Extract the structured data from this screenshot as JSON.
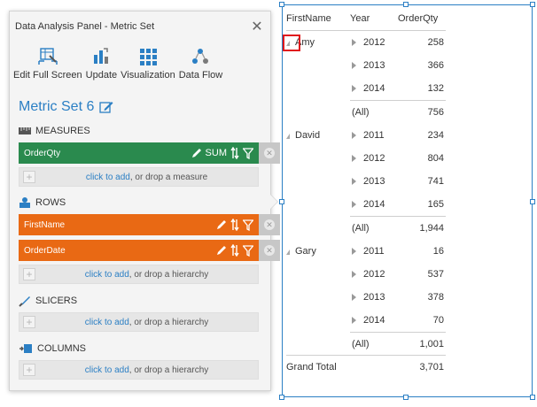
{
  "panel": {
    "title": "Data Analysis Panel - Metric Set",
    "close_glyph": "✕",
    "toolbar": [
      {
        "label": "Edit Full Screen",
        "icon": "edit-full-screen-icon"
      },
      {
        "label": "Update",
        "icon": "update-icon"
      },
      {
        "label": "Visualization",
        "icon": "visualization-grid-icon"
      },
      {
        "label": "Data Flow",
        "icon": "data-flow-icon"
      }
    ],
    "metric_set_name": "Metric Set 6",
    "sections": {
      "measures": "MEASURES",
      "rows": "ROWS",
      "slicers": "SLICERS",
      "columns": "COLUMNS"
    },
    "measures": [
      {
        "label": "OrderQty",
        "aggregate": "SUM"
      }
    ],
    "rows": [
      {
        "label": "FirstName"
      },
      {
        "label": "OrderDate"
      }
    ],
    "drop_zones": {
      "link": "click to add",
      "measure_suffix": ", or drop a measure",
      "hierarchy_suffix": ", or drop a hierarchy"
    },
    "colors": {
      "measure_bar": "#2a8a4e",
      "row_bar": "#e96914",
      "accent": "#2b7fc4"
    }
  },
  "report": {
    "headers": {
      "first_name": "FirstName",
      "year": "Year",
      "order_qty": "OrderQty"
    },
    "groups": [
      {
        "name": "Amy",
        "rows": [
          {
            "year": "2012",
            "qty": "258"
          },
          {
            "year": "2013",
            "qty": "366"
          },
          {
            "year": "2014",
            "qty": "132"
          }
        ],
        "subtotal_label": "(All)",
        "subtotal": "756"
      },
      {
        "name": "David",
        "rows": [
          {
            "year": "2011",
            "qty": "234"
          },
          {
            "year": "2012",
            "qty": "804"
          },
          {
            "year": "2013",
            "qty": "741"
          },
          {
            "year": "2014",
            "qty": "165"
          }
        ],
        "subtotal_label": "(All)",
        "subtotal": "1,944"
      },
      {
        "name": "Gary",
        "rows": [
          {
            "year": "2011",
            "qty": "16"
          },
          {
            "year": "2012",
            "qty": "537"
          },
          {
            "year": "2013",
            "qty": "378"
          },
          {
            "year": "2014",
            "qty": "70"
          }
        ],
        "subtotal_label": "(All)",
        "subtotal": "1,001"
      }
    ],
    "grand_total_label": "Grand Total",
    "grand_total": "3,701"
  }
}
